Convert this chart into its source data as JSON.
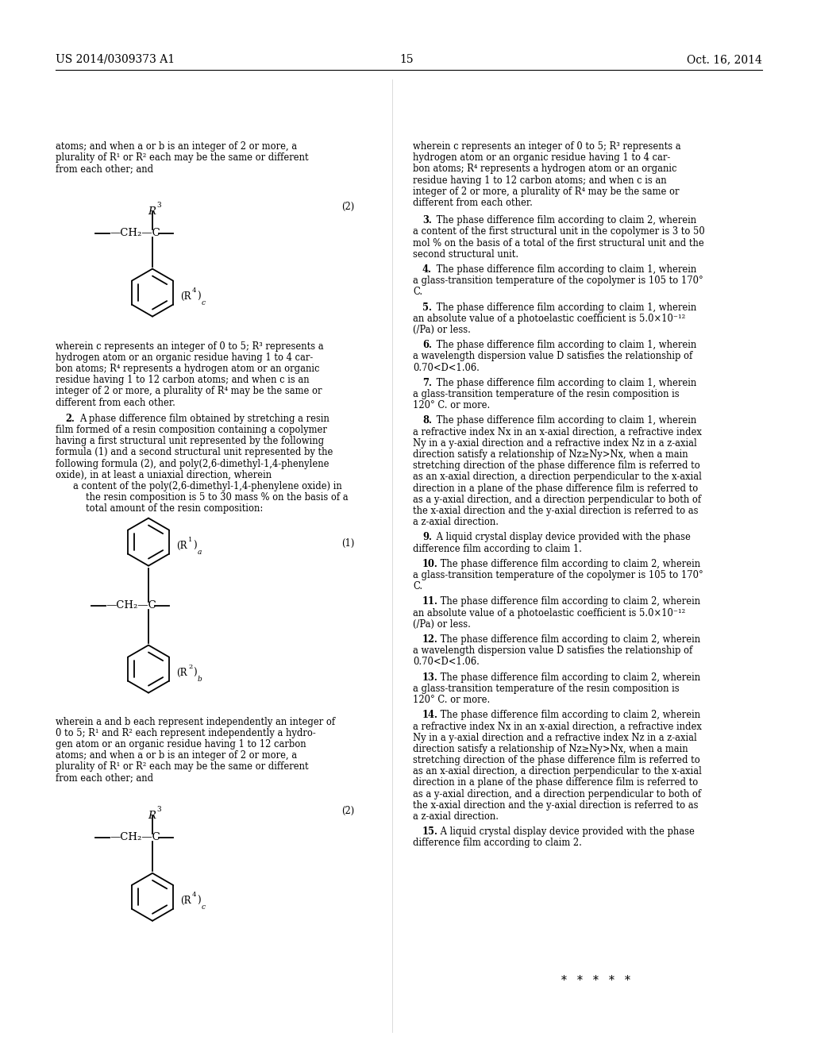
{
  "bg": "#ffffff",
  "header_left": "US 2014/0309373 A1",
  "header_center": "15",
  "header_right": "Oct. 16, 2014",
  "left_top_lines": [
    "atoms; and when a or b is an integer of 2 or more, a",
    "plurality of R¹ or R² each may be the same or different",
    "from each other; and"
  ],
  "formula2_label": "(2)",
  "formula2_wherein_lines": [
    "wherein c represents an integer of 0 to 5; R³ represents a",
    "hydrogen atom or an organic residue having 1 to 4 car-",
    "bon atoms; R⁴ represents a hydrogen atom or an organic",
    "residue having 1 to 12 carbon atoms; and when c is an",
    "integer of 2 or more, a plurality of R⁴ may be the same or",
    "different from each other."
  ],
  "claim2_first": "A phase difference film obtained by stretching a resin",
  "claim2_body": [
    "film formed of a resin composition containing a copolymer",
    "having a first structural unit represented by the following",
    "formula (1) and a second structural unit represented by the",
    "following formula (2), and poly(2,6-dimethyl-1,4-phenylene",
    "oxide), in at least a uniaxial direction, wherein"
  ],
  "claim2_indent1": "a content of the poly(2,6-dimethyl-1,4-phenylene oxide) in",
  "claim2_indent2": "   the resin composition is 5 to 30 mass % on the basis of a",
  "claim2_indent3": "   total amount of the resin composition:",
  "formula1_label": "(1)",
  "formula1_wherein_lines": [
    "wherein a and b each represent independently an integer of",
    "0 to 5; R¹ and R² each represent independently a hydro-",
    "gen atom or an organic residue having 1 to 12 carbon",
    "atoms; and when a or b is an integer of 2 or more, a",
    "plurality of R¹ or R² each may be the same or different",
    "from each other; and"
  ],
  "formula2b_label": "(2)",
  "right_col_top_lines": [
    "wherein c represents an integer of 0 to 5; R³ represents a",
    "hydrogen atom or an organic residue having 1 to 4 car-",
    "bon atoms; R⁴ represents a hydrogen atom or an organic",
    "residue having 1 to 12 carbon atoms; and when c is an",
    "integer of 2 or more, a plurality of R⁴ may be the same or",
    "different from each other."
  ],
  "claims_right": [
    {
      "num": "3",
      "first": " The phase difference film according to claim 2, wherein",
      "lines": [
        "a content of the first structural unit in the copolymer is 3 to 50",
        "mol % on the basis of a total of the first structural unit and the",
        "second structural unit."
      ]
    },
    {
      "num": "4",
      "first": " The phase difference film according to claim 1, wherein",
      "lines": [
        "a glass-transition temperature of the copolymer is 105 to 170°",
        "C."
      ]
    },
    {
      "num": "5",
      "first": " The phase difference film according to claim 1, wherein",
      "lines": [
        "an absolute value of a photoelastic coefficient is 5.0×10⁻¹²",
        "(/Pa) or less."
      ]
    },
    {
      "num": "6",
      "first": " The phase difference film according to claim 1, wherein",
      "lines": [
        "a wavelength dispersion value D satisfies the relationship of",
        "0.70<D<1.06."
      ]
    },
    {
      "num": "7",
      "first": " The phase difference film according to claim 1, wherein",
      "lines": [
        "a glass-transition temperature of the resin composition is",
        "120° C. or more."
      ]
    },
    {
      "num": "8",
      "first": " The phase difference film according to claim 1, wherein",
      "lines": [
        "a refractive index Nx in an x-axial direction, a refractive index",
        "Ny in a y-axial direction and a refractive index Nz in a z-axial",
        "direction satisfy a relationship of Nz≥Ny>Nx, when a main",
        "stretching direction of the phase difference film is referred to",
        "as an x-axial direction, a direction perpendicular to the x-axial",
        "direction in a plane of the phase difference film is referred to",
        "as a y-axial direction, and a direction perpendicular to both of",
        "the x-axial direction and the y-axial direction is referred to as",
        "a z-axial direction."
      ]
    },
    {
      "num": "9",
      "first": " A liquid crystal display device provided with the phase",
      "lines": [
        "difference film according to claim 1."
      ]
    },
    {
      "num": "10",
      "first": " The phase difference film according to claim 2, wherein",
      "lines": [
        "a glass-transition temperature of the copolymer is 105 to 170°",
        "C."
      ]
    },
    {
      "num": "11",
      "first": " The phase difference film according to claim 2, wherein",
      "lines": [
        "an absolute value of a photoelastic coefficient is 5.0×10⁻¹²",
        "(/Pa) or less."
      ]
    },
    {
      "num": "12",
      "first": " The phase difference film according to claim 2, wherein",
      "lines": [
        "a wavelength dispersion value D satisfies the relationship of",
        "0.70<D<1.06."
      ]
    },
    {
      "num": "13",
      "first": " The phase difference film according to claim 2, wherein",
      "lines": [
        "a glass-transition temperature of the resin composition is",
        "120° C. or more."
      ]
    },
    {
      "num": "14",
      "first": " The phase difference film according to claim 2, wherein",
      "lines": [
        "a refractive index Nx in an x-axial direction, a refractive index",
        "Ny in a y-axial direction and a refractive index Nz in a z-axial",
        "direction satisfy a relationship of Nz≥Ny>Nx, when a main",
        "stretching direction of the phase difference film is referred to",
        "as an x-axial direction, a direction perpendicular to the x-axial",
        "direction in a plane of the phase difference film is referred to",
        "as a y-axial direction, and a direction perpendicular to both of",
        "the x-axial direction and the y-axial direction is referred to as",
        "a z-axial direction."
      ]
    },
    {
      "num": "15",
      "first": " A liquid crystal display device provided with the phase",
      "lines": [
        "difference film according to claim 2."
      ]
    }
  ]
}
